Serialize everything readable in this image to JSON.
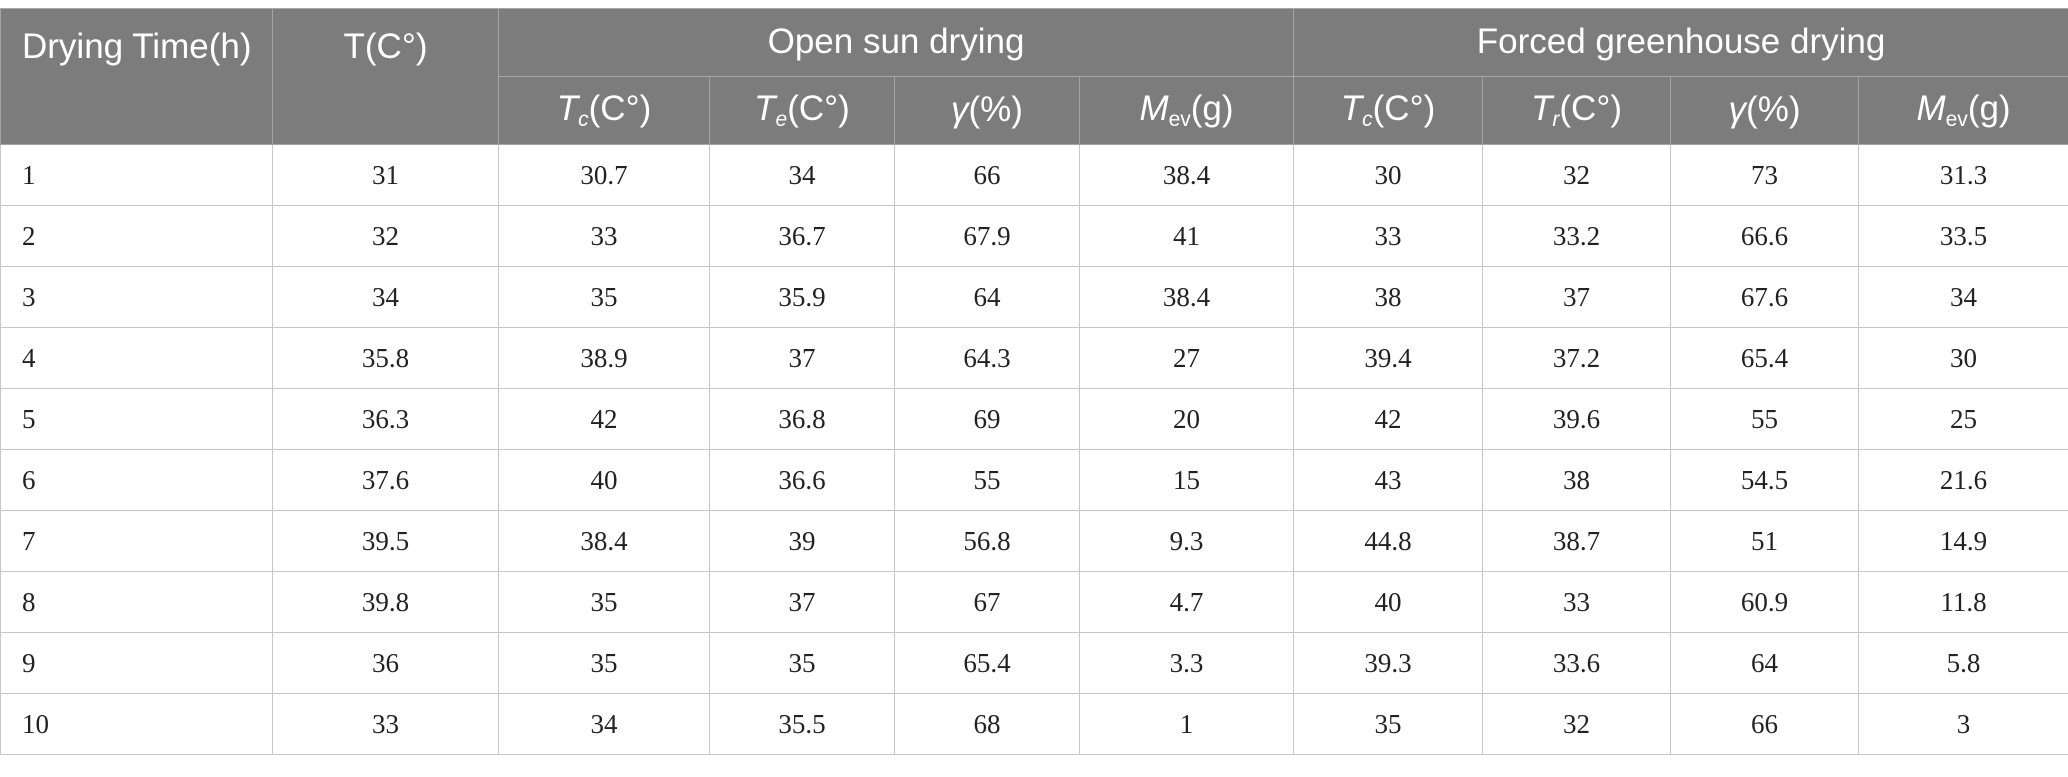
{
  "header": {
    "drying_time": "Drying Time(h)",
    "t_ambient": "T(C°)",
    "group_open": "Open sun drying",
    "group_forced": "Forced greenhouse drying",
    "open_cols": [
      {
        "sym": "T",
        "sub": "c",
        "unit": "(C°)"
      },
      {
        "sym": "T",
        "sub": "e",
        "unit": "(C°)"
      },
      {
        "sym": "γ",
        "sub": "",
        "unit": "(%)"
      },
      {
        "sym": "M",
        "sub": "ev",
        "unit": "(g)"
      }
    ],
    "forced_cols": [
      {
        "sym": "T",
        "sub": "c",
        "unit": "(C°)"
      },
      {
        "sym": "T",
        "sub": "r",
        "unit": "(C°)"
      },
      {
        "sym": "γ",
        "sub": "",
        "unit": "(%)"
      },
      {
        "sym": "M",
        "sub": "ev",
        "unit": "(g)"
      }
    ]
  },
  "rows": [
    [
      "1",
      "31",
      "30.7",
      "34",
      "66",
      "38.4",
      "30",
      "32",
      "73",
      "31.3"
    ],
    [
      "2",
      "32",
      "33",
      "36.7",
      "67.9",
      "41",
      "33",
      "33.2",
      "66.6",
      "33.5"
    ],
    [
      "3",
      "34",
      "35",
      "35.9",
      "64",
      "38.4",
      "38",
      "37",
      "67.6",
      "34"
    ],
    [
      "4",
      "35.8",
      "38.9",
      "37",
      "64.3",
      "27",
      "39.4",
      "37.2",
      "65.4",
      "30"
    ],
    [
      "5",
      "36.3",
      "42",
      "36.8",
      "69",
      "20",
      "42",
      "39.6",
      "55",
      "25"
    ],
    [
      "6",
      "37.6",
      "40",
      "36.6",
      "55",
      "15",
      "43",
      "38",
      "54.5",
      "21.6"
    ],
    [
      "7",
      "39.5",
      "38.4",
      "39",
      "56.8",
      "9.3",
      "44.8",
      "38.7",
      "51",
      "14.9"
    ],
    [
      "8",
      "39.8",
      "35",
      "37",
      "67",
      "4.7",
      "40",
      "33",
      "60.9",
      "11.8"
    ],
    [
      "9",
      "36",
      "35",
      "35",
      "65.4",
      "3.3",
      "39.3",
      "33.6",
      "64",
      "5.8"
    ],
    [
      "10",
      "33",
      "34",
      "35.5",
      "68",
      "1",
      "35",
      "32",
      "66",
      "3"
    ]
  ],
  "colors": {
    "header_bg": "#7b7c7b",
    "header_text": "#ffffff",
    "body_text": "#222222",
    "grid": "#c6c6c6"
  }
}
